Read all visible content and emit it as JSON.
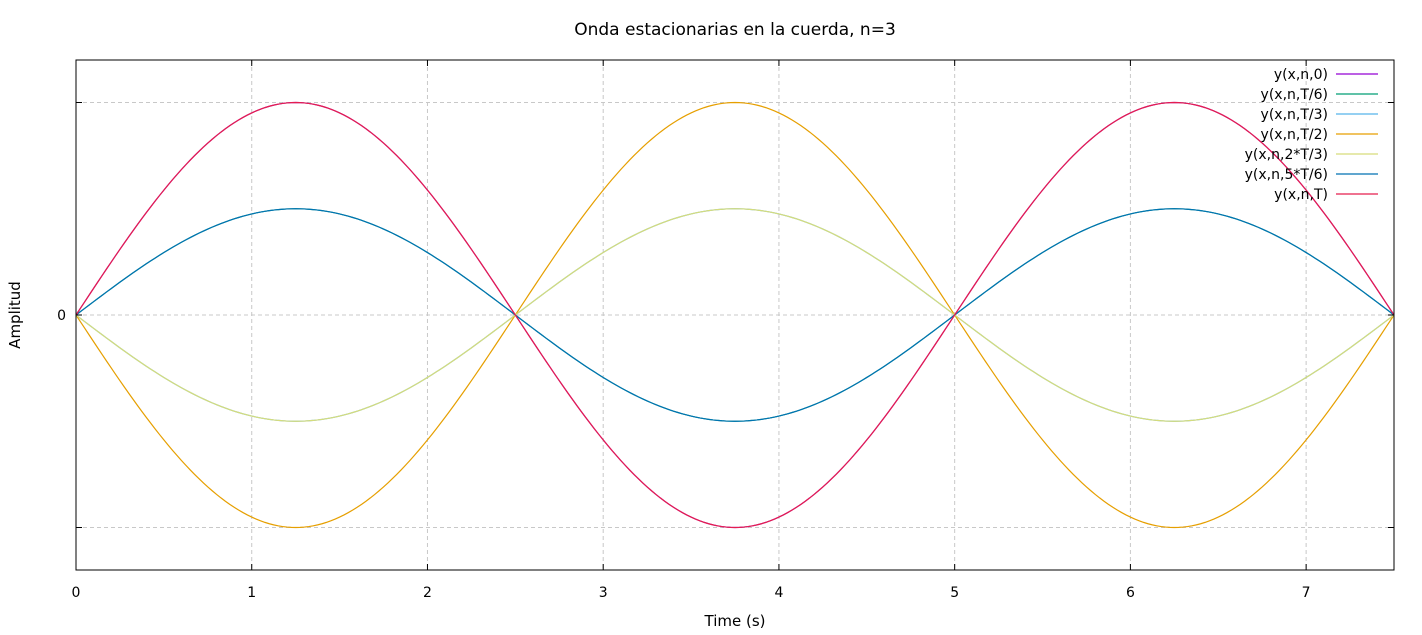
{
  "chart_data": {
    "type": "line",
    "title": "Onda estacionarias en la cuerda, n=3",
    "xlabel": "Time (s)",
    "ylabel": "Amplitud",
    "xlim": [
      0,
      7.5
    ],
    "ylim": [
      -1.2,
      1.2
    ],
    "xticks": [
      0,
      1,
      2,
      3,
      4,
      5,
      6,
      7
    ],
    "yticks": [
      0
    ],
    "y_gridlines": [
      -1,
      0,
      1
    ],
    "grid": true,
    "legend_position": "top-right",
    "wavelength": 5,
    "x_range": [
      0,
      7.5
    ],
    "series": [
      {
        "name": "y(x,n,0)",
        "amplitude": 1.0,
        "color": "#9400d3"
      },
      {
        "name": "y(x,n,T/6)",
        "amplitude": 0.5,
        "color": "#009e73"
      },
      {
        "name": "y(x,n,T/3)",
        "amplitude": -0.5,
        "color": "#56b4e9"
      },
      {
        "name": "y(x,n,T/2)",
        "amplitude": -1.0,
        "color": "#e69f00"
      },
      {
        "name": "y(x,n,2*T/3)",
        "amplitude": -0.5,
        "color": "#d7dc7a"
      },
      {
        "name": "y(x,n,5*T/6)",
        "amplitude": 0.5,
        "color": "#0072b2"
      },
      {
        "name": "y(x,n,T)",
        "amplitude": 1.0,
        "color": "#e51e4e"
      }
    ]
  }
}
